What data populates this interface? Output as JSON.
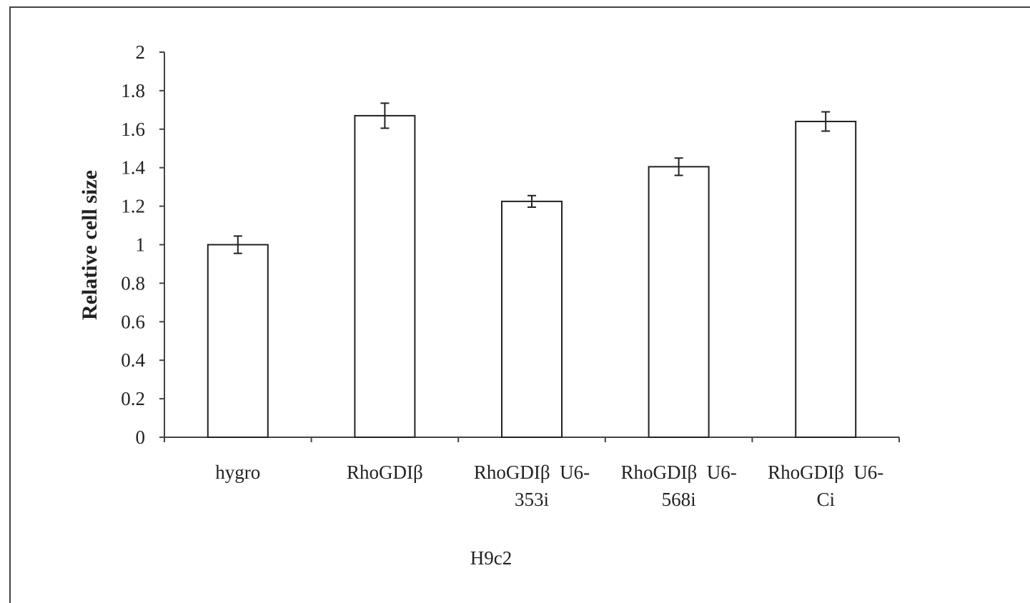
{
  "chart_data": {
    "type": "bar",
    "title": "",
    "ylabel": "Relative cell size",
    "xlabel": "H9c2",
    "ylim": [
      0,
      2
    ],
    "yticks": [
      "0",
      "0.2",
      "0.4",
      "0.6",
      "0.8",
      "1",
      "1.2",
      "1.4",
      "1.6",
      "1.8",
      "2"
    ],
    "categories": [
      [
        "hygro"
      ],
      [
        "RhoGDIβ"
      ],
      [
        "RhoGDIβ  U6-",
        "353i"
      ],
      [
        "RhoGDIβ  U6-",
        "568i"
      ],
      [
        "RhoGDIβ  U6-",
        "Ci"
      ]
    ],
    "values": [
      1.0,
      1.67,
      1.225,
      1.405,
      1.64
    ],
    "errors": [
      0.045,
      0.065,
      0.03,
      0.045,
      0.05
    ],
    "grid": false,
    "legend": "none",
    "bar_fill": "#ffffff",
    "bar_stroke": "#222222",
    "axis_color": "#444444",
    "frame_color": "#444444"
  }
}
